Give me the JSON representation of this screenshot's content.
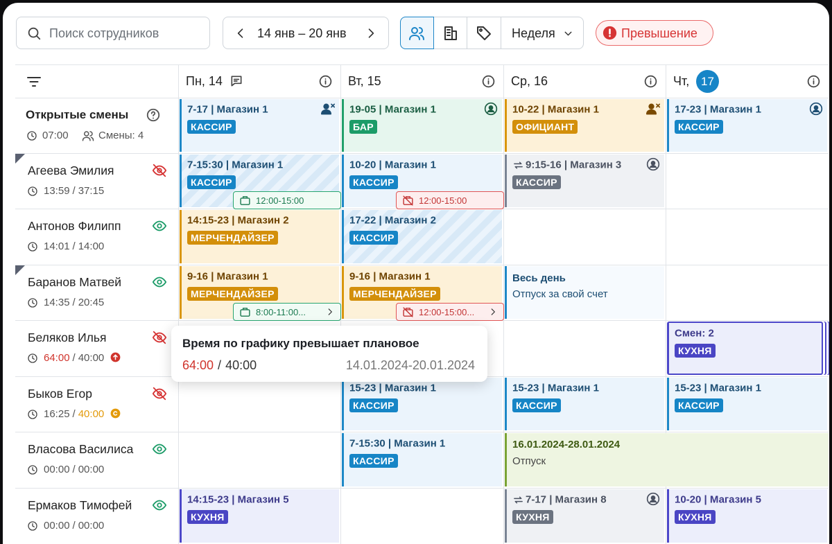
{
  "toolbar": {
    "search_placeholder": "Поиск сотрудников",
    "date_range": "14 янв – 20 янв",
    "view": "Неделя",
    "alert": "Превышение"
  },
  "days": [
    {
      "label": "Пн, 14",
      "comment": true
    },
    {
      "label": "Вт, 15"
    },
    {
      "label": "Ср, 16"
    },
    {
      "label": "Чт,",
      "badge": "17"
    }
  ],
  "open_shifts": {
    "title": "Открытые смены",
    "time": "07:00",
    "count": "Смены: 4",
    "shifts": [
      {
        "title": "7-17 | Магазин 1",
        "role": "КАССИР",
        "color": "blue",
        "icon": "person-x"
      },
      {
        "title": "19-05 | Магазин 1",
        "role": "БАР",
        "color": "green",
        "icon": "person-sync"
      },
      {
        "title": "10-22 | Магазин 1",
        "role": "ОФИЦИАНТ",
        "color": "orange",
        "icon": "person-x"
      },
      {
        "title": "17-23 | Магазин 1",
        "role": "КАССИР",
        "color": "blue",
        "icon": "person-sync"
      }
    ]
  },
  "hours_separator": "/",
  "employees": [
    {
      "name": "Агеева Эмилия",
      "visible": false,
      "marked": true,
      "hours_worked": "13:59",
      "hours_planned": "37:15",
      "shifts": [
        {
          "title": "7-15:30 | Магазин 1",
          "role": "КАССИР",
          "color": "blue",
          "pattern": "striped",
          "badge": {
            "text": "12:00-15:00",
            "tone": "green"
          }
        },
        {
          "title": "10-20 | Магазин 1",
          "role": "КАССИР",
          "color": "blue",
          "badge": {
            "text": "12:00-15:00",
            "tone": "red"
          }
        },
        {
          "title": "9:15-16 | Магазин 3",
          "role": "КАССИР",
          "color": "grey",
          "swap": true,
          "icon": "person-sync"
        },
        null
      ]
    },
    {
      "name": "Антонов Филипп",
      "visible": true,
      "hours_worked": "14:01",
      "hours_planned": "14:00",
      "shifts": [
        {
          "title": "14:15-23 | Магазин 2",
          "role": "МЕРЧЕНДАЙЗЕР",
          "color": "orange"
        },
        {
          "title": "17-22 | Магазин 2",
          "role": "КАССИР",
          "color": "blue",
          "pattern": "striped"
        },
        null,
        null
      ]
    },
    {
      "name": "Баранов Матвей",
      "visible": true,
      "marked": true,
      "hours_worked": "14:35",
      "hours_planned": "20:45",
      "shifts": [
        {
          "title": "9-16 | Магазин 1",
          "role": "МЕРЧЕНДАЙЗЕР",
          "color": "orange",
          "badge": {
            "text": "8:00-11:00...",
            "tone": "green",
            "more": true
          }
        },
        {
          "title": "9-16 | Магазин 1",
          "role": "МЕРЧЕНДАЙЗЕР",
          "color": "orange",
          "badge": {
            "text": "12:00-15:00...",
            "tone": "red",
            "more": true
          }
        },
        {
          "kind": "absence",
          "title": "Весь день",
          "subtitle": "Отпуск за свой счет"
        },
        null
      ]
    },
    {
      "name": "Беляков Илья",
      "visible": false,
      "hours_worked": "64:00",
      "hours_planned": "40:00",
      "hours_alert": "over",
      "shifts": [
        null,
        null,
        null,
        {
          "kind": "multi",
          "title": "Смен: 2",
          "role": "КУХНЯ",
          "color": "purple"
        }
      ]
    },
    {
      "name": "Быков Егор",
      "visible": false,
      "hours_worked": "16:25",
      "hours_planned": "40:00",
      "hours_alert": "warning",
      "shifts": [
        null,
        {
          "title": "15-23 | Магазин 1",
          "role": "КАССИР",
          "color": "blue"
        },
        {
          "title": "15-23 | Магазин 1",
          "role": "КАССИР",
          "color": "blue"
        },
        {
          "title": "15-23 | Магазин 1",
          "role": "КАССИР",
          "color": "blue"
        }
      ]
    },
    {
      "name": "Власова Василиса",
      "visible": true,
      "hours_worked": "00:00",
      "hours_planned": "00:00",
      "shifts": [
        null,
        {
          "title": "7-15:30 | Магазин 1",
          "role": "КАССИР",
          "color": "blue"
        },
        {
          "kind": "vacation",
          "title": "16.01.2024-28.01.2024",
          "subtitle": "Отпуск"
        },
        null
      ]
    },
    {
      "name": "Ермаков Тимофей",
      "visible": true,
      "hours_worked": "00:00",
      "hours_planned": "00:00",
      "shifts": [
        {
          "title": "14:15-23 | Магазин 5",
          "role": "КУХНЯ",
          "color": "purple"
        },
        null,
        {
          "title": "7-17 | Магазин 8",
          "role": "КУХНЯ",
          "color": "grey",
          "swap": true,
          "icon": "person-sync"
        },
        {
          "title": "10-20 | Магазин 5",
          "role": "КУХНЯ",
          "color": "purple"
        }
      ]
    }
  ],
  "tooltip": {
    "title": "Время по графику превышает плановое",
    "worked": "64:00",
    "separator": "/",
    "planned": "40:00",
    "period": "14.01.2024-20.01.2024"
  }
}
